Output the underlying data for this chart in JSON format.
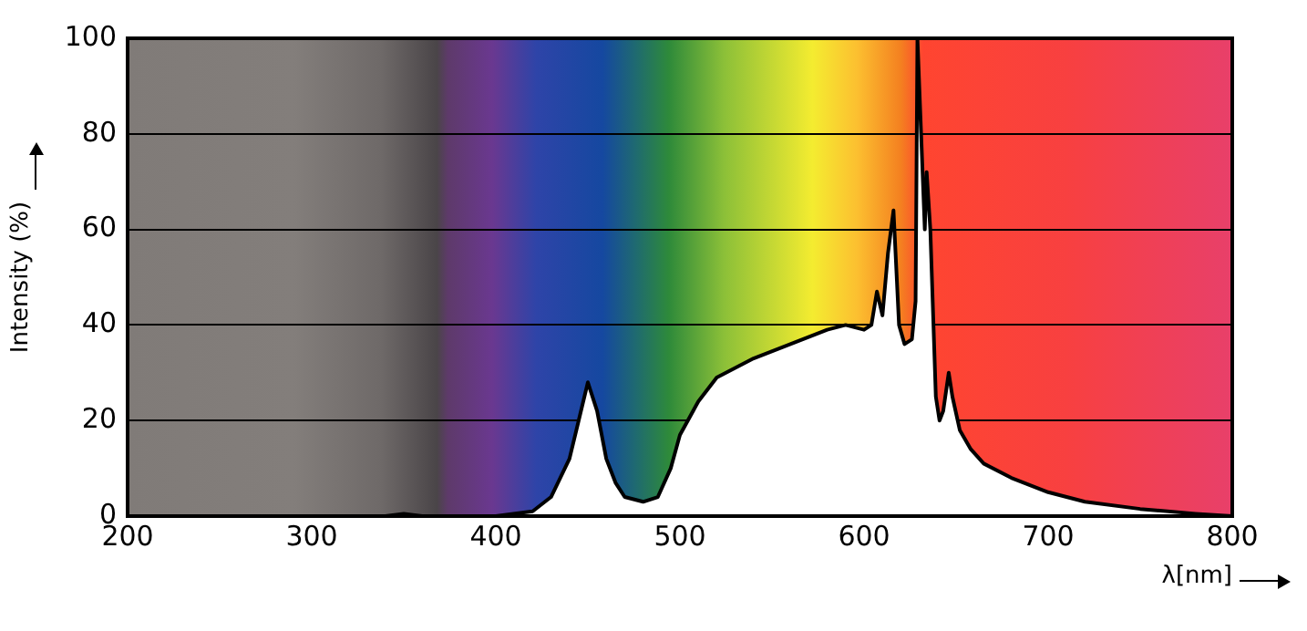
{
  "chart_data": {
    "type": "area",
    "xlabel": "λ[nm]",
    "ylabel": "Intensity (%)",
    "xlim": [
      200,
      800
    ],
    "xticks": [
      200,
      300,
      400,
      500,
      600,
      700,
      800
    ],
    "ylim": [
      0,
      100
    ],
    "yticks": [
      0,
      20,
      40,
      60,
      80,
      100
    ],
    "grid": "y",
    "legend": false,
    "series": [
      {
        "color": "#ffffff",
        "x": [
          200,
          340,
          350,
          360,
          400,
          420,
          430,
          440,
          445,
          450,
          455,
          460,
          465,
          470,
          480,
          488,
          495,
          500,
          510,
          520,
          540,
          560,
          580,
          590,
          600,
          604,
          607,
          610,
          613,
          616,
          619,
          622,
          626,
          628,
          629,
          631,
          633,
          634,
          636,
          639,
          641,
          643,
          646,
          648,
          652,
          658,
          665,
          680,
          700,
          720,
          750,
          780,
          800
        ],
        "values": [
          0,
          0,
          0.5,
          0,
          0,
          1,
          4,
          12,
          20,
          28,
          22,
          12,
          7,
          4,
          3,
          4,
          10,
          17,
          24,
          29,
          33,
          36,
          39,
          40,
          39,
          40,
          47,
          42,
          55,
          64,
          40,
          36,
          37,
          45,
          100,
          80,
          60,
          72,
          60,
          25,
          20,
          22,
          30,
          25,
          18,
          14,
          11,
          8,
          5,
          3,
          1.5,
          0.5,
          0
        ]
      }
    ]
  }
}
